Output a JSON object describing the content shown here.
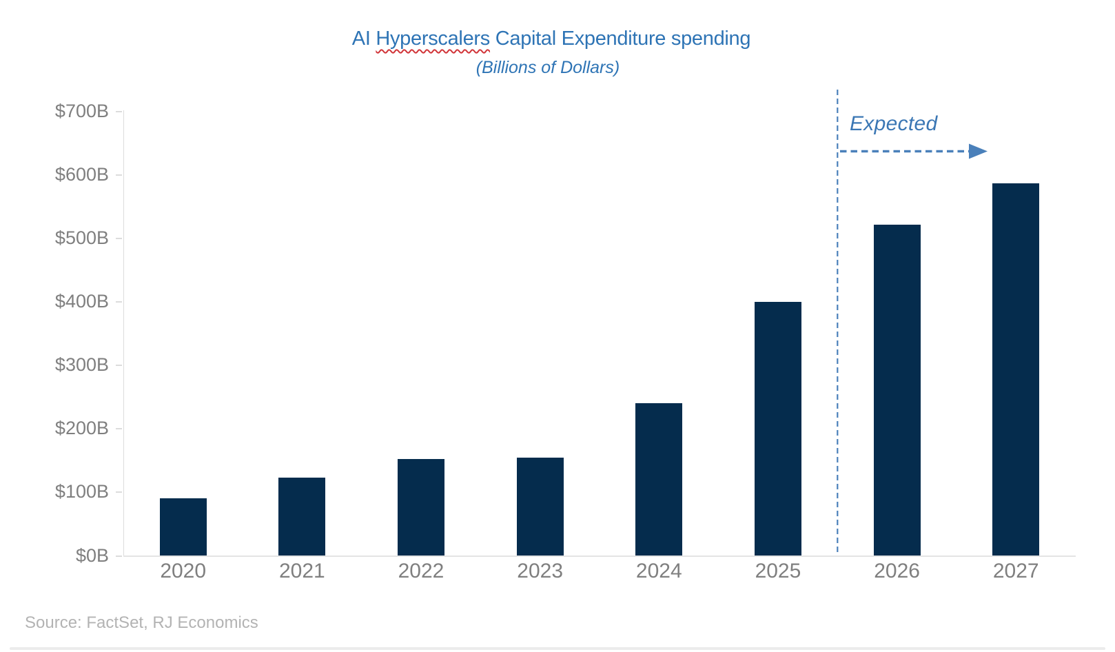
{
  "chart_data": {
    "type": "bar",
    "title": "AI Hyperscalers Capital Expenditure spending",
    "title_parts": {
      "prefix": "AI ",
      "misspelled_word": "Hyperscalers",
      "suffix": " Capital Expenditure spending"
    },
    "subtitle": "(Billions of Dollars)",
    "categories": [
      "2020",
      "2021",
      "2022",
      "2023",
      "2024",
      "2025",
      "2026",
      "2027"
    ],
    "values": [
      91,
      123,
      153,
      155,
      240,
      400,
      522,
      587
    ],
    "value_unit": "billions of dollars",
    "ylim": [
      0,
      700
    ],
    "y_ticks": [
      {
        "label": "$0B",
        "value": 0
      },
      {
        "label": "$100B",
        "value": 100
      },
      {
        "label": "$200B",
        "value": 200
      },
      {
        "label": "$300B",
        "value": 300
      },
      {
        "label": "$400B",
        "value": 400
      },
      {
        "label": "$500B",
        "value": 500
      },
      {
        "label": "$600B",
        "value": 600
      },
      {
        "label": "$700B",
        "value": 700
      }
    ],
    "grid": "off",
    "legend": "none",
    "annotations": {
      "expected_label": "Expected",
      "separator_between_categories": [
        "2025",
        "2026"
      ],
      "expected_categories": [
        "2026",
        "2027"
      ]
    },
    "source": "Source: FactSet, RJ Economics",
    "colors": {
      "bar": "#052c4d",
      "title_text": "#2e74b5",
      "annotation_blue": "#4a80ba",
      "axis_text": "#7f7f7f",
      "source_text": "#b3b3b3",
      "axis_line": "#dcdcdc",
      "spellcheck_underline": "#d13438"
    }
  }
}
